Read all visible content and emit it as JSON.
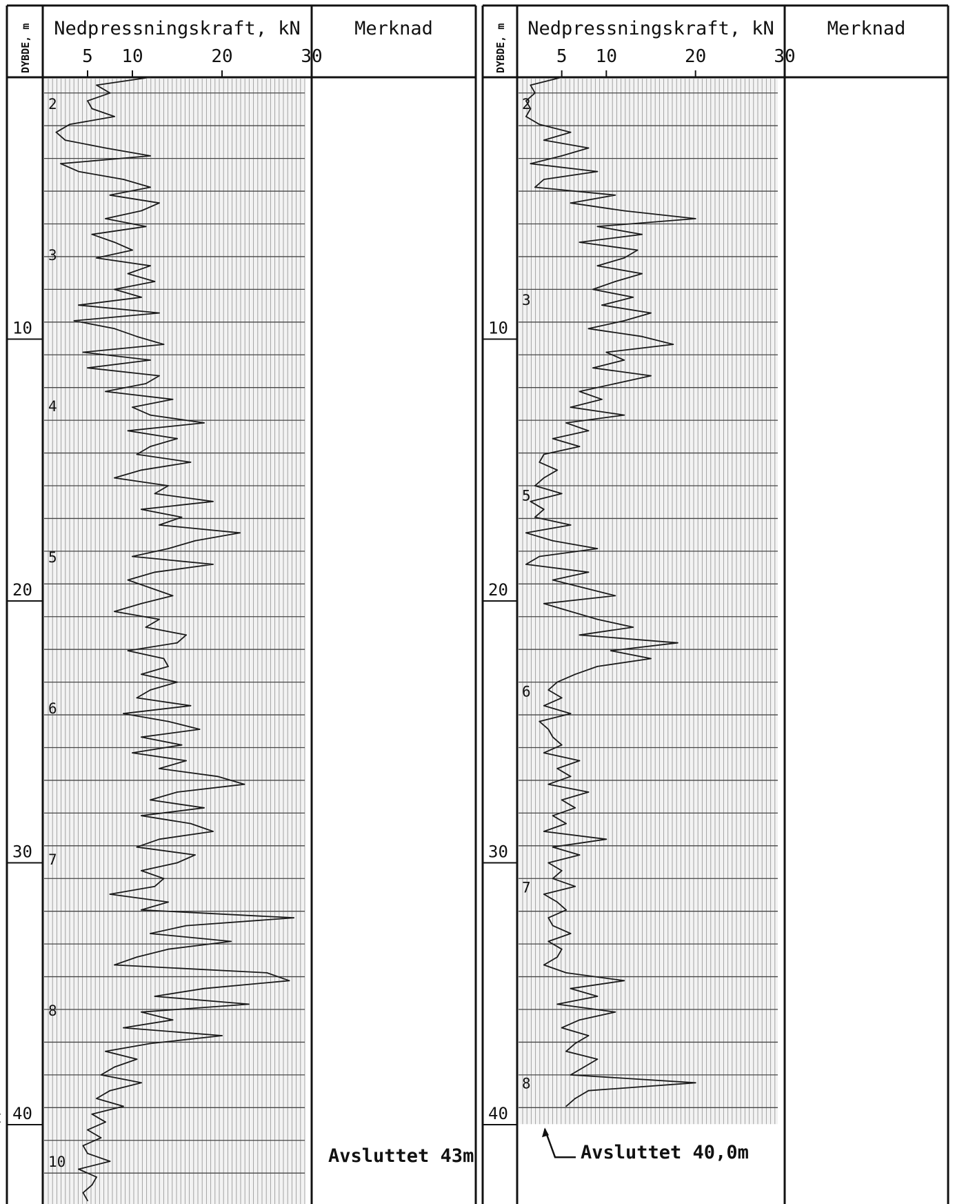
{
  "chart_data": [
    {
      "type": "line",
      "header": {
        "depth_label": "DYBDE, m",
        "force_label": "Nedpressningskraft, kN",
        "remark_label": "Merknad"
      },
      "x_ticks": [
        "5",
        "10",
        "20",
        "30"
      ],
      "depth_ticks": [
        "10",
        "20",
        "30",
        "40"
      ],
      "x_unit": "kN",
      "y_unit": "m",
      "xlim": [
        0,
        30
      ],
      "ylim": [
        0,
        44
      ],
      "rod_labels": [
        "2",
        "3",
        "4",
        "5",
        "6",
        "7",
        "8",
        "10"
      ],
      "remark": "Avsluttet 43m",
      "series": [
        {
          "depth": [
            0.0,
            0.3,
            0.6,
            0.9,
            1.2,
            1.5,
            1.8,
            2.1,
            2.4,
            2.7,
            3.0,
            3.3,
            3.6,
            3.9,
            4.2,
            4.5,
            4.8,
            5.1,
            5.4,
            5.7,
            6.0,
            6.3,
            6.6,
            6.9,
            7.2,
            7.5,
            7.8,
            8.1,
            8.4,
            8.7,
            9.0,
            9.3,
            9.6,
            9.9,
            10.2,
            10.5,
            10.8,
            11.1,
            11.4,
            11.7,
            12.0,
            12.3,
            12.6,
            12.9,
            13.2,
            13.5,
            13.8,
            14.1,
            14.4,
            14.7,
            15.0,
            15.3,
            15.6,
            15.9,
            16.2,
            16.5,
            16.8,
            17.1,
            17.4,
            17.7,
            18.0,
            18.3,
            18.6,
            18.9,
            19.2,
            19.5,
            19.8,
            20.1,
            20.4,
            20.7,
            21.0,
            21.3,
            21.6,
            21.9,
            22.2,
            22.5,
            22.8,
            23.1,
            23.4,
            23.7,
            24.0,
            24.3,
            24.6,
            24.9,
            25.2,
            25.5,
            25.8,
            26.1,
            26.4,
            26.7,
            27.0,
            27.3,
            27.6,
            27.9,
            28.2,
            28.5,
            28.8,
            29.1,
            29.4,
            29.7,
            30.0,
            30.3,
            30.6,
            30.9,
            31.2,
            31.5,
            31.8,
            32.1,
            32.4,
            32.7,
            33.0,
            33.3,
            33.6,
            33.9,
            34.2,
            34.5,
            34.8,
            35.1,
            35.4,
            35.7,
            36.0,
            36.3,
            36.6,
            36.9,
            37.2,
            37.5,
            37.8,
            38.1,
            38.4,
            38.7,
            39.0,
            39.3,
            39.6,
            39.9,
            40.2,
            40.5,
            40.8,
            41.1,
            41.4,
            41.7,
            42.0,
            42.3,
            42.6,
            42.9
          ],
          "force": [
            12.0,
            6.0,
            7.5,
            5.0,
            5.5,
            8.0,
            3.0,
            1.5,
            2.5,
            7.0,
            12.0,
            2.0,
            4.0,
            9.0,
            12.0,
            7.5,
            13.0,
            11.0,
            7.0,
            11.5,
            5.5,
            8.0,
            10.0,
            6.0,
            12.0,
            9.5,
            12.5,
            8.0,
            11.0,
            4.0,
            13.0,
            3.5,
            8.0,
            10.5,
            13.5,
            4.5,
            12.0,
            5.0,
            13.0,
            11.5,
            7.0,
            14.5,
            10.0,
            12.0,
            18.0,
            9.5,
            15.0,
            12.0,
            10.5,
            16.5,
            11.0,
            8.0,
            14.0,
            12.5,
            19.0,
            11.0,
            15.5,
            13.0,
            22.0,
            17.0,
            14.0,
            10.0,
            19.0,
            12.5,
            9.5,
            12.0,
            14.5,
            11.0,
            8.0,
            13.0,
            11.5,
            16.0,
            15.0,
            9.5,
            13.5,
            14.0,
            11.0,
            15.0,
            12.0,
            10.5,
            16.5,
            9.0,
            14.0,
            17.5,
            11.0,
            15.5,
            10.0,
            16.0,
            13.0,
            19.5,
            22.5,
            15.0,
            12.0,
            18.0,
            11.0,
            16.5,
            19.0,
            13.0,
            10.5,
            17.0,
            15.0,
            11.0,
            13.5,
            12.5,
            7.5,
            14.0,
            11.0,
            28.0,
            16.0,
            12.0,
            21.0,
            14.0,
            10.5,
            8.0,
            25.0,
            27.5,
            18.0,
            12.5,
            23.0,
            11.0,
            14.5,
            9.0,
            20.0,
            12.0,
            7.0,
            10.5,
            8.0,
            6.5,
            11.0,
            7.5,
            6.0,
            9.0,
            5.5,
            7.0,
            5.0,
            6.5,
            4.5,
            5.0,
            7.5,
            4.0,
            6.0,
            5.5,
            4.5,
            5.0
          ]
        }
      ]
    },
    {
      "type": "line",
      "header": {
        "depth_label": "DYBDE, m",
        "force_label": "Nedpressningskraft, kN",
        "remark_label": "Merknad"
      },
      "x_ticks": [
        "5",
        "10",
        "20",
        "30"
      ],
      "depth_ticks": [
        "10",
        "20",
        "30",
        "40"
      ],
      "x_unit": "kN",
      "y_unit": "m",
      "xlim": [
        0,
        30
      ],
      "ylim": [
        0,
        44
      ],
      "rod_labels": [
        "2",
        "3",
        "5",
        "6",
        "7",
        "8"
      ],
      "remark": "Avsluttet 40,0m",
      "series": [
        {
          "depth": [
            0.0,
            0.3,
            0.6,
            0.9,
            1.2,
            1.5,
            1.8,
            2.1,
            2.4,
            2.7,
            3.0,
            3.3,
            3.6,
            3.9,
            4.2,
            4.5,
            4.8,
            5.1,
            5.4,
            5.7,
            6.0,
            6.3,
            6.6,
            6.9,
            7.2,
            7.5,
            7.8,
            8.1,
            8.4,
            8.7,
            9.0,
            9.3,
            9.6,
            9.9,
            10.2,
            10.5,
            10.8,
            11.1,
            11.4,
            11.7,
            12.0,
            12.3,
            12.6,
            12.9,
            13.2,
            13.5,
            13.8,
            14.1,
            14.4,
            14.7,
            15.0,
            15.3,
            15.6,
            15.9,
            16.2,
            16.5,
            16.8,
            17.1,
            17.4,
            17.7,
            18.0,
            18.3,
            18.6,
            18.9,
            19.2,
            19.5,
            19.8,
            20.1,
            20.4,
            20.7,
            21.0,
            21.3,
            21.6,
            21.9,
            22.2,
            22.5,
            22.8,
            23.1,
            23.4,
            23.7,
            24.0,
            24.3,
            24.6,
            24.9,
            25.2,
            25.5,
            25.8,
            26.1,
            26.4,
            26.7,
            27.0,
            27.3,
            27.6,
            27.9,
            28.2,
            28.5,
            28.8,
            29.1,
            29.4,
            29.7,
            30.0,
            30.3,
            30.6,
            30.9,
            31.2,
            31.5,
            31.8,
            32.1,
            32.4,
            32.7,
            33.0,
            33.3,
            33.6,
            33.9,
            34.2,
            34.5,
            34.8,
            35.1,
            35.4,
            35.7,
            36.0,
            36.3,
            36.6,
            36.9,
            37.2,
            37.5,
            37.8,
            38.1,
            38.4,
            38.7,
            39.0,
            39.3,
            39.6,
            39.9
          ],
          "force": [
            5.0,
            1.5,
            2.0,
            1.0,
            1.5,
            1.0,
            2.5,
            6.0,
            3.0,
            8.0,
            5.0,
            1.5,
            9.0,
            3.0,
            2.0,
            11.0,
            6.0,
            12.0,
            20.0,
            9.0,
            14.0,
            7.0,
            13.5,
            12.0,
            9.0,
            14.0,
            11.0,
            8.5,
            13.0,
            9.5,
            15.0,
            12.0,
            8.0,
            14.0,
            17.5,
            10.0,
            12.0,
            8.5,
            15.0,
            11.0,
            7.0,
            9.5,
            6.0,
            12.0,
            5.5,
            8.0,
            4.0,
            7.0,
            3.0,
            2.5,
            4.5,
            3.0,
            2.0,
            5.0,
            1.5,
            3.0,
            2.0,
            6.0,
            1.0,
            4.0,
            9.0,
            2.5,
            1.0,
            8.0,
            4.0,
            7.5,
            11.0,
            3.0,
            6.0,
            9.0,
            13.0,
            7.0,
            18.0,
            10.5,
            15.0,
            9.0,
            6.5,
            4.5,
            3.5,
            5.0,
            3.0,
            6.0,
            2.5,
            3.5,
            4.0,
            5.0,
            3.0,
            7.0,
            4.5,
            6.0,
            3.5,
            8.0,
            5.0,
            6.5,
            4.0,
            5.5,
            3.0,
            10.0,
            4.0,
            7.0,
            3.5,
            5.0,
            4.0,
            6.5,
            3.0,
            4.5,
            5.5,
            3.5,
            4.0,
            6.0,
            3.5,
            5.0,
            4.5,
            3.0,
            5.5,
            12.0,
            6.0,
            9.0,
            4.5,
            11.0,
            7.0,
            5.0,
            8.0,
            6.5,
            5.5,
            9.0,
            7.5,
            6.0,
            20.0,
            8.0,
            6.5,
            5.5
          ]
        }
      ]
    }
  ]
}
